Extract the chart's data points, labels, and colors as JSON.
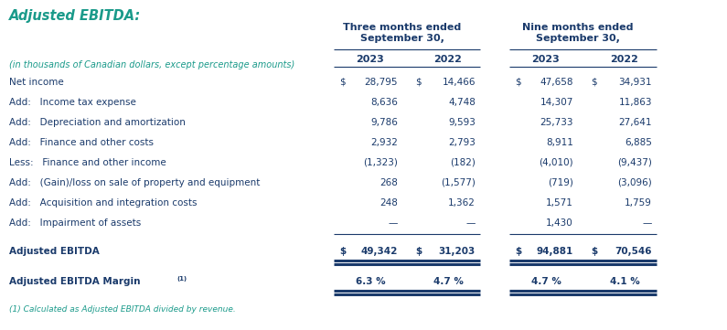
{
  "title": "Adjusted EBITDA:",
  "title_color": "#1a9a8a",
  "header1": "Three months ended\nSeptember 30,",
  "header2": "Nine months ended\nSeptember 30,",
  "subheader_italic": "(in thousands of Canadian dollars, except percentage amounts)",
  "rows": [
    {
      "label": "Net income",
      "prefix": [
        "$",
        "$",
        "$",
        "$"
      ],
      "vals": [
        "28,795",
        "14,466",
        "47,658",
        "34,931"
      ],
      "bold": false
    },
    {
      "label": "Add:   Income tax expense",
      "prefix": [
        "",
        "",
        "",
        ""
      ],
      "vals": [
        "8,636",
        "4,748",
        "14,307",
        "11,863"
      ],
      "bold": false
    },
    {
      "label": "Add:   Depreciation and amortization",
      "prefix": [
        "",
        "",
        "",
        ""
      ],
      "vals": [
        "9,786",
        "9,593",
        "25,733",
        "27,641"
      ],
      "bold": false
    },
    {
      "label": "Add:   Finance and other costs",
      "prefix": [
        "",
        "",
        "",
        ""
      ],
      "vals": [
        "2,932",
        "2,793",
        "8,911",
        "6,885"
      ],
      "bold": false
    },
    {
      "label": "Less:   Finance and other income",
      "prefix": [
        "",
        "",
        "",
        ""
      ],
      "vals": [
        "(1,323)",
        "(182)",
        "(4,010)",
        "(9,437)"
      ],
      "bold": false
    },
    {
      "label": "Add:   (Gain)/loss on sale of property and equipment",
      "prefix": [
        "",
        "",
        "",
        ""
      ],
      "vals": [
        "268",
        "(1,577)",
        "(719)",
        "(3,096)"
      ],
      "bold": false
    },
    {
      "label": "Add:   Acquisition and integration costs",
      "prefix": [
        "",
        "",
        "",
        ""
      ],
      "vals": [
        "248",
        "1,362",
        "1,571",
        "1,759"
      ],
      "bold": false
    },
    {
      "label": "Add:   Impairment of assets",
      "prefix": [
        "",
        "",
        "",
        ""
      ],
      "vals": [
        "—",
        "—",
        "1,430",
        "—"
      ],
      "bold": false
    }
  ],
  "total_row": {
    "label": "Adjusted EBITDA",
    "prefix": [
      "$",
      "$",
      "$",
      "$"
    ],
    "vals": [
      "49,342",
      "31,203",
      "94,881",
      "70,546"
    ]
  },
  "margin_vals": [
    "6.3 %",
    "4.7 %",
    "4.7 %",
    "4.1 %"
  ],
  "footnote": "(1) Calculated as Adjusted EBITDA divided by revenue.",
  "teal": "#1a9a8a",
  "navy": "#1a3a6b",
  "bg": "#ffffff",
  "fs_title": 10.5,
  "fs_header": 8.0,
  "fs_sub": 7.0,
  "fs_data": 7.5,
  "fs_foot": 6.5,
  "lw_thin": 0.8,
  "lw_thick": 2.2
}
